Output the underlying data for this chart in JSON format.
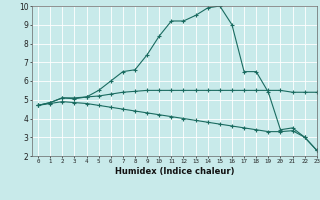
{
  "xlabel": "Humidex (Indice chaleur)",
  "bg_color": "#c8eaea",
  "line_color": "#1a6b60",
  "grid_color": "#ffffff",
  "xlim": [
    -0.5,
    23
  ],
  "ylim": [
    2,
    10
  ],
  "yticks": [
    2,
    3,
    4,
    5,
    6,
    7,
    8,
    9,
    10
  ],
  "xticks": [
    0,
    1,
    2,
    3,
    4,
    5,
    6,
    7,
    8,
    9,
    10,
    11,
    12,
    13,
    14,
    15,
    16,
    17,
    18,
    19,
    20,
    21,
    22,
    23
  ],
  "line1_x": [
    0,
    1,
    2,
    3,
    4,
    5,
    6,
    7,
    8,
    9,
    10,
    11,
    12,
    13,
    14,
    15,
    16,
    17,
    18,
    19,
    20,
    21,
    22,
    23
  ],
  "line1_y": [
    4.7,
    4.85,
    5.1,
    5.1,
    5.15,
    5.2,
    5.3,
    5.4,
    5.45,
    5.5,
    5.5,
    5.5,
    5.5,
    5.5,
    5.5,
    5.5,
    5.5,
    5.5,
    5.5,
    5.5,
    5.5,
    5.4,
    5.4,
    5.4
  ],
  "line2_x": [
    0,
    1,
    2,
    3,
    4,
    5,
    6,
    7,
    8,
    9,
    10,
    11,
    12,
    13,
    14,
    15,
    16,
    17,
    18,
    19,
    20,
    21,
    22,
    23
  ],
  "line2_y": [
    4.7,
    4.85,
    5.1,
    5.05,
    5.15,
    5.5,
    6.0,
    6.5,
    6.6,
    7.4,
    8.4,
    9.2,
    9.2,
    9.5,
    9.9,
    10.0,
    9.0,
    6.5,
    6.5,
    5.4,
    3.4,
    3.5,
    3.0,
    2.3
  ],
  "line3_x": [
    0,
    1,
    2,
    3,
    4,
    5,
    6,
    7,
    8,
    9,
    10,
    11,
    12,
    13,
    14,
    15,
    16,
    17,
    18,
    19,
    20,
    21,
    22,
    23
  ],
  "line3_y": [
    4.7,
    4.8,
    4.9,
    4.85,
    4.8,
    4.7,
    4.6,
    4.5,
    4.4,
    4.3,
    4.2,
    4.1,
    4.0,
    3.9,
    3.8,
    3.7,
    3.6,
    3.5,
    3.4,
    3.3,
    3.3,
    3.35,
    3.0,
    2.3
  ]
}
